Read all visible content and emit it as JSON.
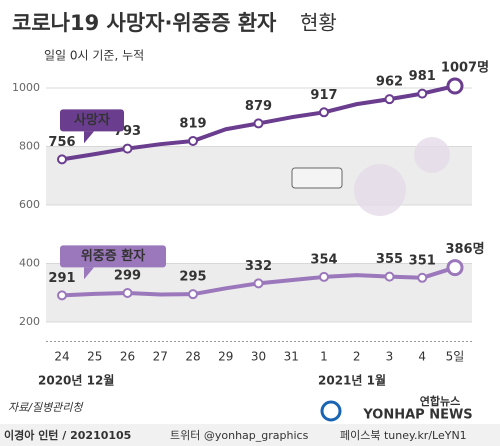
{
  "chart_data": {
    "type": "line",
    "title": "코로나19 사망자·위중증 환자",
    "title_suffix": "현황",
    "subtitle": "일일 0시 기준, 누적",
    "categories": [
      "24",
      "25",
      "26",
      "27",
      "28",
      "29",
      "30",
      "31",
      "1",
      "2",
      "3",
      "4",
      "5일"
    ],
    "period_labels": [
      "2020년 12월",
      "2021년 1월"
    ],
    "series": [
      {
        "name": "사망자",
        "color": "#6a3d8f",
        "values": [
          756,
          774,
          793,
          808,
          819,
          859,
          879,
          900,
          917,
          945,
          962,
          981,
          1007
        ],
        "value_labels": [
          "756",
          null,
          "793",
          null,
          "819",
          null,
          "879",
          null,
          "917",
          null,
          "962",
          "981",
          "1007명"
        ]
      },
      {
        "name": "위중증 환자",
        "color": "#9b78bb",
        "values": [
          291,
          296,
          299,
          294,
          295,
          315,
          332,
          343,
          354,
          360,
          355,
          351,
          386
        ],
        "value_labels": [
          "291",
          null,
          "299",
          null,
          "295",
          null,
          "332",
          null,
          "354",
          null,
          "355",
          "351",
          "386명"
        ]
      }
    ],
    "ylim": [
      140,
      1060
    ],
    "yticks": [
      200,
      400,
      600,
      800,
      1000
    ],
    "grid": true,
    "source": "자료/질병관리청"
  },
  "footer": {
    "credit": "이경아 인턴 / 20210105",
    "twitter": "트위터 @yonhap_graphics",
    "facebook": "페이스북 tuney.kr/LeYN1",
    "logo": "연합뉴스",
    "logo_en": "YONHAP NEWS"
  }
}
